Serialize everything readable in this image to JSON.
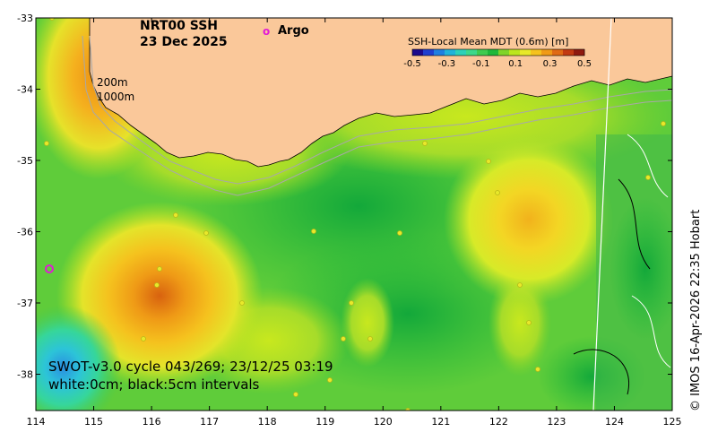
{
  "map": {
    "title_line1": "NRT00 SSH",
    "title_line2": "23 Dec 2025",
    "argo_symbol": "o",
    "argo_label": "Argo",
    "contour_label_200": "200m",
    "contour_label_1000": "1000m",
    "annotation_line1": "SWOT-v3.0 cycle 043/269; 23/12/25 03:19",
    "annotation_line2": "white:0cm; black:5cm intervals",
    "credit": "© IMOS 16-Apr-2026 22:35 Hobart",
    "x_ticks": [
      "114",
      "115",
      "116",
      "117",
      "118",
      "119",
      "120",
      "121",
      "122",
      "123",
      "124",
      "125"
    ],
    "y_ticks": [
      "-33",
      "-34",
      "-35",
      "-36",
      "-37",
      "-38"
    ],
    "colorbar": {
      "title": "SSH-Local Mean MDT (0.6m) [m]",
      "ticks": [
        "-0.5",
        "-0.3",
        "-0.1",
        "0.1",
        "0.3",
        "0.5"
      ],
      "colors": [
        "#1c0a8c",
        "#1f3fcf",
        "#1f7fe0",
        "#21b3d9",
        "#2dd1b8",
        "#3dd88a",
        "#3fcb4f",
        "#1fb83a",
        "#7fd42a",
        "#bce61e",
        "#e8e82a",
        "#f5c21e",
        "#f09a16",
        "#e06a14",
        "#c23a12",
        "#8f1a10"
      ],
      "land_color": "#fac89a",
      "argo_color": "#e21ad6"
    }
  }
}
